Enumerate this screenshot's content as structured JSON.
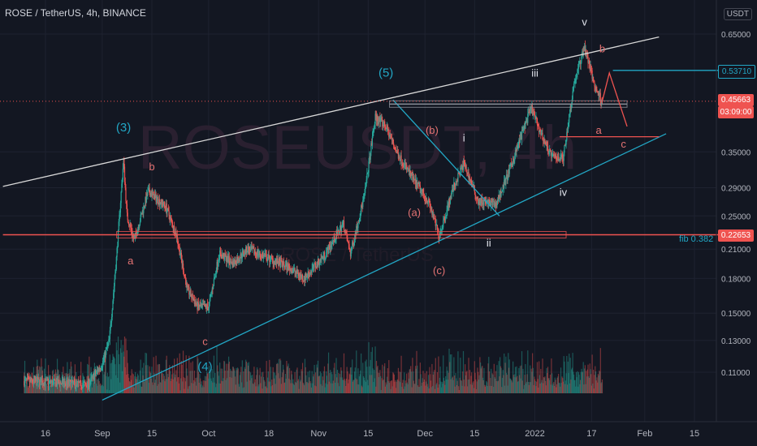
{
  "header": {
    "symbol": "ROSE / TetherUS, 4h, BINANCE",
    "currency": "USDT"
  },
  "watermark": {
    "main": "ROSEUSDT, 4h",
    "sub": "ROSE / TetherUS"
  },
  "colors": {
    "bg": "#131722",
    "grid": "#1e2230",
    "up": "#26a69a",
    "down": "#ef5350",
    "white_line": "#d9d9d9",
    "cyan": "#22a6c4",
    "red": "#ef5350",
    "text": "#b2b5be"
  },
  "price_tags": {
    "blue": {
      "value": "0.53710"
    },
    "current": {
      "value": "0.45663",
      "timer": "03:09:00"
    },
    "red": {
      "value": "0.22653"
    }
  },
  "fib_label": "fib 0.382",
  "chart_data": {
    "type": "candlestick",
    "title": "ROSE / TetherUS, 4h, BINANCE",
    "scale": "log",
    "ylim": [
      0.094,
      0.75
    ],
    "y_ticks": [
      0.65,
      0.35,
      0.29,
      0.25,
      0.21,
      0.18,
      0.15,
      0.13,
      0.11
    ],
    "y_tick_labels": [
      "0.65000",
      "0.35000",
      "0.29000",
      "0.25000",
      "0.21000",
      "0.18000",
      "0.15000",
      "0.13000",
      "0.11000"
    ],
    "x_ticks": [
      {
        "date": "2021-08-16",
        "label": "16"
      },
      {
        "date": "2021-09-01",
        "label": "Sep"
      },
      {
        "date": "2021-09-15",
        "label": "15"
      },
      {
        "date": "2021-10-01",
        "label": "Oct"
      },
      {
        "date": "2021-10-18",
        "label": "18"
      },
      {
        "date": "2021-11-01",
        "label": "Nov"
      },
      {
        "date": "2021-11-15",
        "label": "15"
      },
      {
        "date": "2021-12-01",
        "label": "Dec"
      },
      {
        "date": "2021-12-15",
        "label": "15"
      },
      {
        "date": "2022-01-01",
        "label": "2022"
      },
      {
        "date": "2022-01-17",
        "label": "17"
      },
      {
        "date": "2022-02-01",
        "label": "Feb"
      },
      {
        "date": "2022-02-15",
        "label": "15"
      }
    ],
    "price_path": [
      [
        "2021-08-10",
        0.105
      ],
      [
        "2021-08-20",
        0.104
      ],
      [
        "2021-08-28",
        0.103
      ],
      [
        "2021-09-01",
        0.115
      ],
      [
        "2021-09-03",
        0.13
      ],
      [
        "2021-09-05",
        0.2
      ],
      [
        "2021-09-07",
        0.335
      ],
      [
        "2021-09-08",
        0.25
      ],
      [
        "2021-09-10",
        0.22
      ],
      [
        "2021-09-14",
        0.285
      ],
      [
        "2021-09-19",
        0.262
      ],
      [
        "2021-09-22",
        0.225
      ],
      [
        "2021-09-25",
        0.17
      ],
      [
        "2021-09-28",
        0.155
      ],
      [
        "2021-10-01",
        0.155
      ],
      [
        "2021-10-04",
        0.205
      ],
      [
        "2021-10-08",
        0.195
      ],
      [
        "2021-10-12",
        0.21
      ],
      [
        "2021-10-18",
        0.2
      ],
      [
        "2021-10-24",
        0.19
      ],
      [
        "2021-10-28",
        0.18
      ],
      [
        "2021-11-03",
        0.205
      ],
      [
        "2021-11-08",
        0.24
      ],
      [
        "2021-11-10",
        0.205
      ],
      [
        "2021-11-14",
        0.28
      ],
      [
        "2021-11-17",
        0.42
      ],
      [
        "2021-11-20",
        0.4
      ],
      [
        "2021-11-23",
        0.35
      ],
      [
        "2021-11-28",
        0.3
      ],
      [
        "2021-12-02",
        0.27
      ],
      [
        "2021-12-05",
        0.225
      ],
      [
        "2021-12-09",
        0.29
      ],
      [
        "2021-12-12",
        0.33
      ],
      [
        "2021-12-16",
        0.27
      ],
      [
        "2021-12-21",
        0.265
      ],
      [
        "2021-12-25",
        0.32
      ],
      [
        "2021-12-29",
        0.4
      ],
      [
        "2021-12-31",
        0.44
      ],
      [
        "2022-01-03",
        0.38
      ],
      [
        "2022-01-06",
        0.34
      ],
      [
        "2022-01-09",
        0.34
      ],
      [
        "2022-01-12",
        0.5
      ],
      [
        "2022-01-15",
        0.61
      ],
      [
        "2022-01-18",
        0.49
      ],
      [
        "2022-01-20",
        0.457
      ]
    ],
    "lines": [
      {
        "name": "upper-trendline",
        "color": "white",
        "points": [
          [
            "2021-08-04",
            0.292
          ],
          [
            "2022-02-05",
            0.64
          ]
        ]
      },
      {
        "name": "lower-trendline",
        "color": "cyan",
        "points": [
          [
            "2021-09-01",
            0.095
          ],
          [
            "2022-02-07",
            0.385
          ]
        ]
      },
      {
        "name": "inner-cyan-line",
        "color": "cyan",
        "points": [
          [
            "2021-11-22",
            0.46
          ],
          [
            "2021-12-22",
            0.25
          ]
        ]
      },
      {
        "name": "fib-0382-level",
        "color": "red",
        "points": [
          [
            "2021-08-04",
            0.2265
          ],
          [
            "2022-03-01",
            0.2265
          ]
        ]
      },
      {
        "name": "resistance-0.457",
        "color": "gray",
        "points": [
          [
            "2021-11-21",
            0.45
          ],
          [
            "2022-01-27",
            0.45
          ]
        ]
      },
      {
        "name": "blue-0.537",
        "color": "cyan",
        "points": [
          [
            "2022-01-23",
            0.537
          ],
          [
            "2022-03-01",
            0.537
          ]
        ]
      },
      {
        "name": "red-0.38",
        "color": "red",
        "points": [
          [
            "2022-01-08",
            0.379
          ],
          [
            "2022-02-05",
            0.379
          ]
        ]
      },
      {
        "name": "projection-abc",
        "color": "red",
        "points": [
          [
            "2022-01-20",
            0.457
          ],
          [
            "2022-01-22",
            0.53
          ],
          [
            "2022-01-27",
            0.4
          ]
        ]
      }
    ],
    "wave_labels": [
      {
        "text": "(3)",
        "date": "2021-09-07",
        "price": 0.39,
        "color": "cyan"
      },
      {
        "text": "b",
        "date": "2021-09-15",
        "price": 0.318,
        "color": "red"
      },
      {
        "text": "a",
        "date": "2021-09-09",
        "price": 0.194,
        "color": "red"
      },
      {
        "text": "c",
        "date": "2021-09-30",
        "price": 0.127,
        "color": "red"
      },
      {
        "text": "(4)",
        "date": "2021-09-30",
        "price": 0.111,
        "color": "cyan"
      },
      {
        "text": "(5)",
        "date": "2021-11-20",
        "price": 0.52,
        "color": "cyan"
      },
      {
        "text": "(b)",
        "date": "2021-12-03",
        "price": 0.385,
        "color": "red"
      },
      {
        "text": "(a)",
        "date": "2021-11-28",
        "price": 0.25,
        "color": "red"
      },
      {
        "text": "(c)",
        "date": "2021-12-05",
        "price": 0.184,
        "color": "red"
      },
      {
        "text": "i",
        "date": "2021-12-12",
        "price": 0.37,
        "color": "white"
      },
      {
        "text": "ii",
        "date": "2021-12-19",
        "price": 0.213,
        "color": "white"
      },
      {
        "text": "iii",
        "date": "2022-01-01",
        "price": 0.52,
        "color": "white"
      },
      {
        "text": "iv",
        "date": "2022-01-09",
        "price": 0.278,
        "color": "white"
      },
      {
        "text": "v",
        "date": "2022-01-15",
        "price": 0.68,
        "color": "white"
      },
      {
        "text": "b",
        "date": "2022-01-20",
        "price": 0.59,
        "color": "red"
      },
      {
        "text": "a",
        "date": "2022-01-19",
        "price": 0.385,
        "color": "red"
      },
      {
        "text": "c",
        "date": "2022-01-26",
        "price": 0.358,
        "color": "red"
      }
    ]
  }
}
